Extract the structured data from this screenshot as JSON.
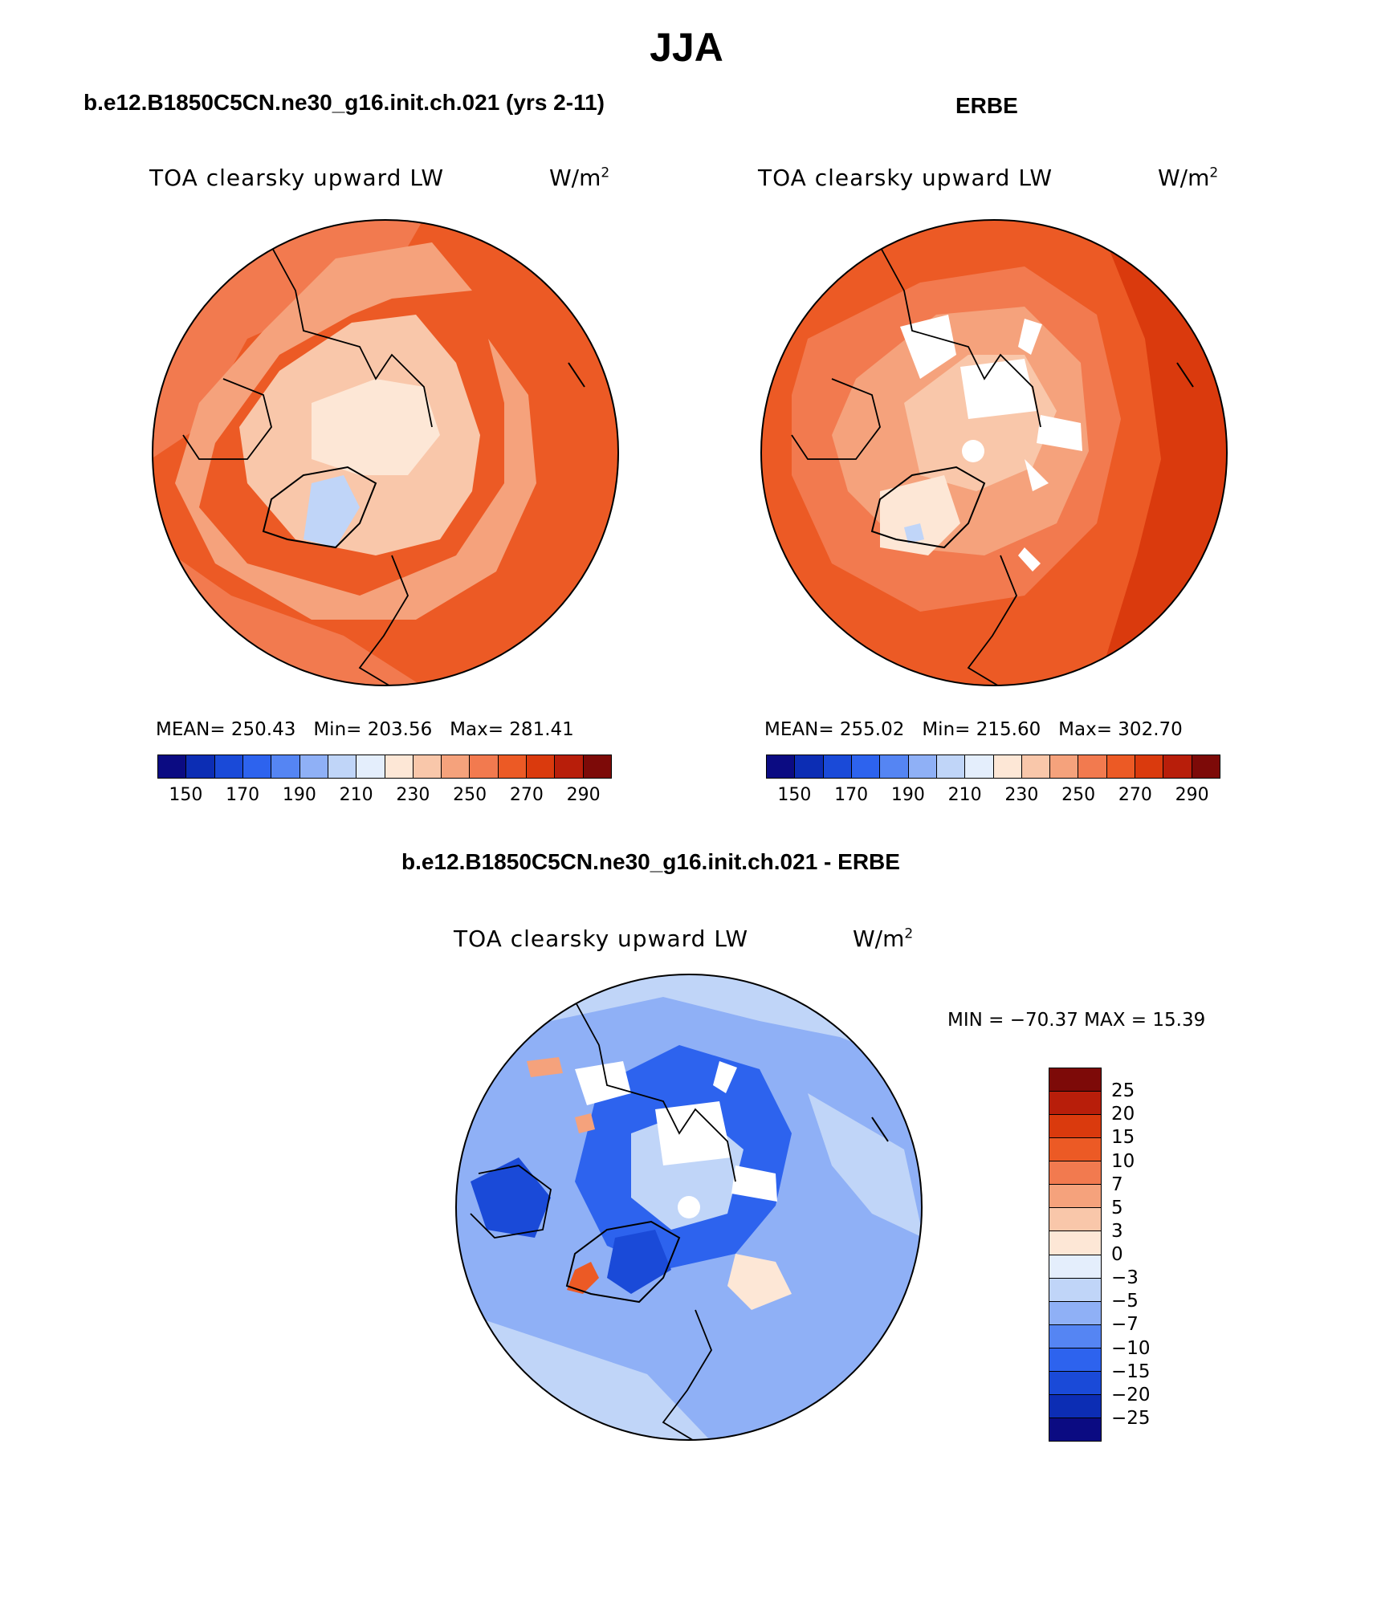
{
  "main_title": "JJA",
  "panels": {
    "model": {
      "case_title": "b.e12.B1850C5CN.ne30_g16.init.ch.021 (yrs 2-11)",
      "plot_title": "TOA clearsky upward LW",
      "unit": "W/m",
      "unit_sup": "2",
      "mean_label": "MEAN=",
      "mean": "250.43",
      "min_label": "Min=",
      "min": "203.56",
      "max_label": "Max=",
      "max": "281.41"
    },
    "obs": {
      "case_title": "ERBE",
      "plot_title": "TOA clearsky upward LW",
      "unit": "W/m",
      "unit_sup": "2",
      "mean_label": "MEAN=",
      "mean": "255.02",
      "min_label": "Min=",
      "min": "215.60",
      "max_label": "Max=",
      "max": "302.70"
    },
    "diff": {
      "case_title": "b.e12.B1850C5CN.ne30_g16.init.ch.021 - ERBE",
      "plot_title": "TOA clearsky upward LW",
      "unit": "W/m",
      "unit_sup": "2",
      "minmax_text": "MIN = −70.37 MAX =   15.39"
    }
  },
  "abs_colorbar": {
    "colors": [
      "#0b0b82",
      "#0c2db4",
      "#1a4ad8",
      "#2d63ee",
      "#5585f3",
      "#8fb0f6",
      "#c0d5f8",
      "#e4eefc",
      "#fde7d6",
      "#f9c7aa",
      "#f5a27c",
      "#f27a4f",
      "#ec5a25",
      "#da3a0d",
      "#b81e0a",
      "#7d0a08"
    ],
    "tick_labels": [
      "150",
      "170",
      "190",
      "210",
      "230",
      "250",
      "270",
      "290"
    ]
  },
  "diff_colorbar": {
    "colors": [
      "#7d0a08",
      "#b81e0a",
      "#da3a0d",
      "#ec5a25",
      "#f27a4f",
      "#f5a27c",
      "#f9c7aa",
      "#fde7d6",
      "#e4eefc",
      "#c0d5f8",
      "#8fb0f6",
      "#5585f3",
      "#2d63ee",
      "#1a4ad8",
      "#0c2db4",
      "#0b0b82"
    ],
    "tick_labels": [
      "25",
      "20",
      "15",
      "10",
      "7",
      "5",
      "3",
      "0",
      "−3",
      "−5",
      "−7",
      "−10",
      "−15",
      "−20",
      "−25"
    ]
  }
}
